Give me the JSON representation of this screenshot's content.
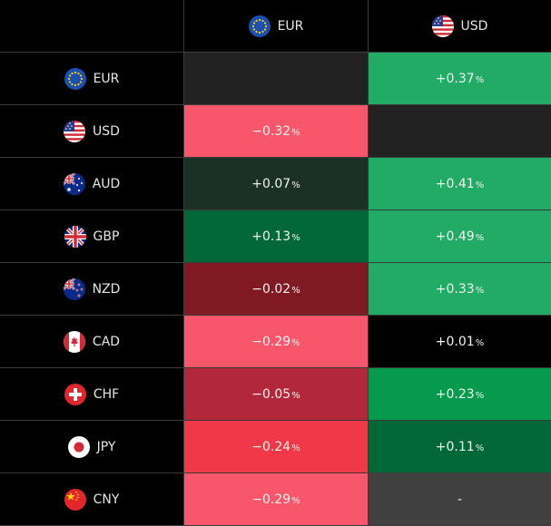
{
  "columns": [
    {
      "code": "EUR",
      "flag_icon": "eu-flag-icon"
    },
    {
      "code": "USD",
      "flag_icon": "us-flag-icon"
    }
  ],
  "rows": [
    {
      "code": "EUR",
      "flag_icon": "eu-flag-icon",
      "cells": [
        {
          "value": "",
          "color": "#222222"
        },
        {
          "value": "+0.37",
          "color": "#22ab64"
        }
      ]
    },
    {
      "code": "USD",
      "flag_icon": "us-flag-icon",
      "cells": [
        {
          "value": "−0.32",
          "color": "#f8566a"
        },
        {
          "value": "",
          "color": "#222222"
        }
      ]
    },
    {
      "code": "AUD",
      "flag_icon": "au-flag-icon",
      "cells": [
        {
          "value": "+0.07",
          "color": "#1c3125"
        },
        {
          "value": "+0.41",
          "color": "#22ab64"
        }
      ]
    },
    {
      "code": "GBP",
      "flag_icon": "gb-flag-icon",
      "cells": [
        {
          "value": "+0.13",
          "color": "#036837"
        },
        {
          "value": "+0.49",
          "color": "#22ab64"
        }
      ]
    },
    {
      "code": "NZD",
      "flag_icon": "nz-flag-icon",
      "cells": [
        {
          "value": "−0.02",
          "color": "#801922"
        },
        {
          "value": "+0.33",
          "color": "#22ab64"
        }
      ]
    },
    {
      "code": "CAD",
      "flag_icon": "ca-flag-icon",
      "cells": [
        {
          "value": "−0.29",
          "color": "#f8566a"
        },
        {
          "value": "+0.01",
          "color": "#000000"
        }
      ]
    },
    {
      "code": "CHF",
      "flag_icon": "ch-flag-icon",
      "cells": [
        {
          "value": "−0.05",
          "color": "#b2283a"
        },
        {
          "value": "+0.23",
          "color": "#069a4c"
        }
      ]
    },
    {
      "code": "JPY",
      "flag_icon": "jp-flag-icon",
      "cells": [
        {
          "value": "−0.24",
          "color": "#f13848"
        },
        {
          "value": "+0.11",
          "color": "#036837"
        }
      ]
    },
    {
      "code": "CNY",
      "flag_icon": "cn-flag-icon",
      "cells": [
        {
          "value": "−0.29",
          "color": "#f8566a"
        },
        {
          "value": "-",
          "color": "#404040"
        }
      ]
    }
  ],
  "percent_sign": "%"
}
